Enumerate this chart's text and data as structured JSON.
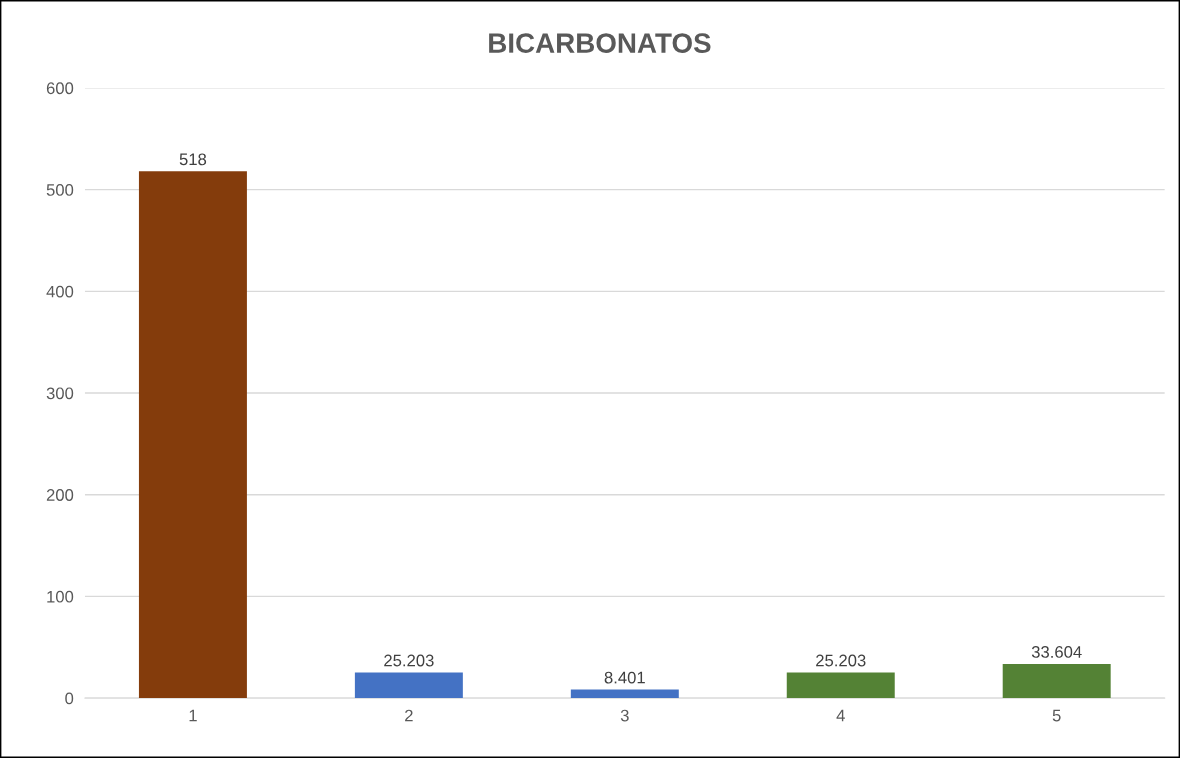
{
  "chart_data": {
    "type": "bar",
    "title": "BICARBONATOS",
    "categories": [
      "1",
      "2",
      "3",
      "4",
      "5"
    ],
    "values": [
      518,
      25.203,
      8.401,
      25.203,
      33.604
    ],
    "colors": [
      "#843c0c",
      "#4472c4",
      "#4472c4",
      "#548235",
      "#548235"
    ],
    "ylim": [
      0,
      600
    ],
    "yticks": [
      0,
      100,
      200,
      300,
      400,
      500,
      600
    ],
    "grid": "y",
    "data_labels": true
  }
}
